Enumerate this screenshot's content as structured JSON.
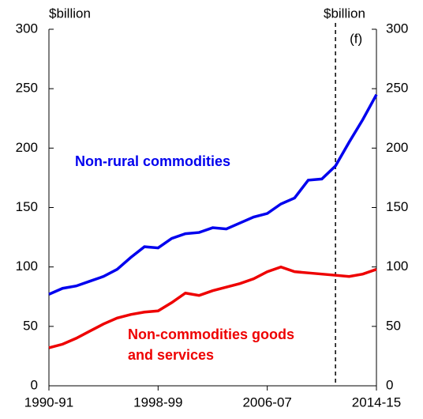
{
  "chart_data": {
    "type": "line",
    "left_unit": "$billion",
    "right_unit": "$billion",
    "forecast_label": "(f)",
    "forecast_start": 2011,
    "x": [
      1990,
      1991,
      1992,
      1993,
      1994,
      1995,
      1996,
      1997,
      1998,
      1999,
      2000,
      2001,
      2002,
      2003,
      2004,
      2005,
      2006,
      2007,
      2008,
      2009,
      2010,
      2011,
      2012,
      2013,
      2014
    ],
    "xlim": [
      1990,
      2014
    ],
    "xticks": [
      {
        "value": 1990,
        "label": "1990-91"
      },
      {
        "value": 1998,
        "label": "1998-99"
      },
      {
        "value": 2006,
        "label": "2006-07"
      },
      {
        "value": 2014,
        "label": "2014-15"
      }
    ],
    "ylim": [
      0,
      300
    ],
    "yticks": [
      0,
      50,
      100,
      150,
      200,
      250,
      300
    ],
    "y2lim": [
      0,
      300
    ],
    "y2ticks": [
      0,
      50,
      100,
      150,
      200,
      250,
      300
    ],
    "series": [
      {
        "label": [
          "Non-rural commodities"
        ],
        "color": "#0000ee",
        "values": [
          77,
          82,
          84,
          88,
          92,
          98,
          108,
          117,
          116,
          124,
          128,
          129,
          133,
          132,
          137,
          142,
          145,
          153,
          158,
          173,
          174,
          185,
          205,
          224,
          245
        ]
      },
      {
        "label": [
          "Non-commodities goods",
          "and services"
        ],
        "color": "#ee0000",
        "values": [
          32,
          35,
          40,
          46,
          52,
          57,
          60,
          62,
          63,
          70,
          78,
          76,
          80,
          83,
          86,
          90,
          96,
          100,
          96,
          95,
          94,
          93,
          92,
          94,
          98
        ]
      }
    ]
  }
}
